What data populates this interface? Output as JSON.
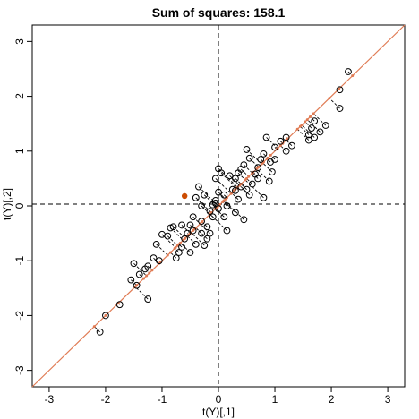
{
  "chart_data": {
    "type": "scatter",
    "title": "Sum of squares: 158.1",
    "xlabel": "t(Y)[,1]",
    "ylabel": "t(Y)[,2]",
    "xlim": [
      -3.3,
      3.3
    ],
    "ylim": [
      -3.3,
      3.3
    ],
    "xticks": [
      -3,
      -2,
      -1,
      0,
      1,
      2,
      3
    ],
    "yticks": [
      -3,
      -2,
      -1,
      0,
      1,
      2,
      3
    ],
    "grid": false,
    "reference_lines": {
      "x": 0,
      "y": 0,
      "style": "dashed"
    },
    "fit_line": {
      "slope": 1.0,
      "intercept": 0.0,
      "color": "#e07b54"
    },
    "highlight_point": {
      "x": -0.6,
      "y": 0.18,
      "color": "#cc4c02"
    },
    "series": [
      {
        "points": [
          [
            2.3,
            2.45
          ],
          [
            2.15,
            2.12
          ],
          [
            2.15,
            1.78
          ],
          [
            1.9,
            1.47
          ],
          [
            1.8,
            1.35
          ],
          [
            1.7,
            1.55
          ],
          [
            1.65,
            1.42
          ],
          [
            1.7,
            1.25
          ],
          [
            1.6,
            1.3
          ],
          [
            1.6,
            1.2
          ],
          [
            1.3,
            1.1
          ],
          [
            1.2,
            1.25
          ],
          [
            1.2,
            1.0
          ],
          [
            1.1,
            1.18
          ],
          [
            1.0,
            1.07
          ],
          [
            1.0,
            0.85
          ],
          [
            0.92,
            0.8
          ],
          [
            0.85,
            1.25
          ],
          [
            0.8,
            0.95
          ],
          [
            0.75,
            0.85
          ],
          [
            0.7,
            0.7
          ],
          [
            0.65,
            0.58
          ],
          [
            0.7,
            0.5
          ],
          [
            0.6,
            0.4
          ],
          [
            0.55,
            0.87
          ],
          [
            0.5,
            1.03
          ],
          [
            0.45,
            0.75
          ],
          [
            0.4,
            0.67
          ],
          [
            0.35,
            0.6
          ],
          [
            0.3,
            0.5
          ],
          [
            0.5,
            0.3
          ],
          [
            0.55,
            0.2
          ],
          [
            0.4,
            0.35
          ],
          [
            0.3,
            0.28
          ],
          [
            0.25,
            0.3
          ],
          [
            0.35,
            0.12
          ],
          [
            0.2,
            0.55
          ],
          [
            0.1,
            0.2
          ],
          [
            0.15,
            0.0
          ],
          [
            0.1,
            -0.2
          ],
          [
            0.05,
            0.6
          ],
          [
            0.0,
            0.68
          ],
          [
            -0.05,
            0.5
          ],
          [
            0.0,
            0.25
          ],
          [
            -0.05,
            0.1
          ],
          [
            -0.05,
            0.05
          ],
          [
            -0.1,
            0.02
          ],
          [
            0.0,
            -0.05
          ],
          [
            -0.1,
            -0.2
          ],
          [
            -0.15,
            -0.1
          ],
          [
            -0.25,
            0.2
          ],
          [
            -0.3,
            0.0
          ],
          [
            -0.3,
            -0.28
          ],
          [
            -0.2,
            -0.38
          ],
          [
            -0.15,
            -0.5
          ],
          [
            -0.35,
            0.35
          ],
          [
            -0.4,
            0.15
          ],
          [
            -0.45,
            -0.2
          ],
          [
            -0.5,
            -0.35
          ],
          [
            -0.55,
            -0.5
          ],
          [
            -0.45,
            -0.45
          ],
          [
            -0.2,
            -0.6
          ],
          [
            -0.25,
            -0.72
          ],
          [
            -0.4,
            -0.7
          ],
          [
            -0.6,
            -0.6
          ],
          [
            -0.65,
            -0.75
          ],
          [
            -0.7,
            -0.85
          ],
          [
            -0.75,
            -0.95
          ],
          [
            -0.8,
            -0.38
          ],
          [
            -0.85,
            -0.4
          ],
          [
            -0.9,
            -0.55
          ],
          [
            -1.0,
            -0.52
          ],
          [
            -1.1,
            -0.7
          ],
          [
            -1.05,
            -1.0
          ],
          [
            -1.15,
            -0.95
          ],
          [
            -1.25,
            -1.1
          ],
          [
            -1.3,
            -1.15
          ],
          [
            -1.4,
            -1.25
          ],
          [
            -1.45,
            -1.45
          ],
          [
            -1.5,
            -1.05
          ],
          [
            -1.25,
            -1.7
          ],
          [
            -1.55,
            -1.35
          ],
          [
            -1.75,
            -1.8
          ],
          [
            -2.0,
            -2.0
          ],
          [
            -2.1,
            -2.3
          ],
          [
            -0.65,
            -0.35
          ],
          [
            -0.5,
            -0.85
          ],
          [
            -0.3,
            -0.5
          ],
          [
            0.15,
            -0.45
          ],
          [
            0.3,
            -0.12
          ],
          [
            0.45,
            -0.25
          ],
          [
            0.9,
            0.45
          ],
          [
            0.95,
            0.62
          ],
          [
            0.8,
            0.15
          ]
        ]
      }
    ]
  }
}
